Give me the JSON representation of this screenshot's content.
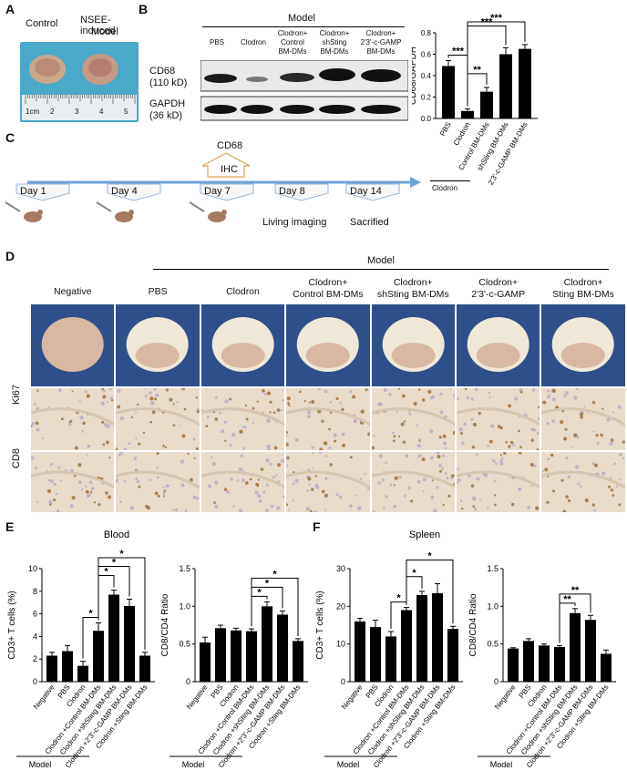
{
  "panel_letters": [
    "A",
    "B",
    "C",
    "D",
    "E",
    "F"
  ],
  "panelA": {
    "labels": [
      "Control",
      "NSEE-induced",
      "Model"
    ],
    "ruler_labels": [
      "1cm",
      "2",
      "3",
      "4",
      "5"
    ]
  },
  "panelB": {
    "model_label": "Model",
    "lane_labels": [
      [
        "PBS"
      ],
      [
        "Clodron"
      ],
      [
        "Clodron+",
        "Control",
        "BM-DMs"
      ],
      [
        "Clodron+",
        "shSting",
        "BM-DMs"
      ],
      [
        "Clodron+",
        "2'3'-c-GAMP",
        "BM-DMs"
      ]
    ],
    "blot_labels": [
      [
        "CD68",
        "(110 kD)"
      ],
      [
        "GAPDH",
        "(36 kD)"
      ]
    ]
  },
  "panelC": {
    "markers": [
      "Day 1",
      "Day 4",
      "Day 7",
      "Day 8",
      "Day 14"
    ],
    "top_label": "CD68",
    "ihc_label": "IHC",
    "events": [
      "Living imaging",
      "Sacrified"
    ],
    "treatment_label": "Clodron"
  },
  "panelD": {
    "model_label": "Model",
    "columns": [
      [
        "Negative"
      ],
      [
        "PBS"
      ],
      [
        "Clodron"
      ],
      [
        "Clodron+",
        "Control BM-DMs"
      ],
      [
        "Clodron+",
        "shSting BM-DMs"
      ],
      [
        "Clodron+",
        "2'3'-c-GAMP"
      ],
      [
        "Clodron+",
        "Sting BM-DMs"
      ]
    ],
    "row_labels": [
      "Ki67",
      "CD8"
    ]
  },
  "chart_data": [
    {
      "id": "B",
      "type": "bar",
      "ylabel": "CD68/GAPDH",
      "ylim": [
        0,
        0.8
      ],
      "yticks": [
        0.0,
        0.2,
        0.4,
        0.6,
        0.8
      ],
      "ytick_labels": [
        "0.0",
        "0.2",
        "0.4",
        "0.6",
        "0.8"
      ],
      "categories": [
        "PBS",
        "Clodron",
        "Control BM-DMs",
        "shSting BM-DMs",
        "2'3'-c-GAMP BM-DMs"
      ],
      "values": [
        0.49,
        0.07,
        0.25,
        0.6,
        0.65
      ],
      "errors": [
        0.05,
        0.02,
        0.04,
        0.06,
        0.04
      ],
      "significance": [
        {
          "from": 0,
          "to": 1,
          "label": "***"
        },
        {
          "from": 1,
          "to": 2,
          "label": "**"
        },
        {
          "from": 1,
          "to": 3,
          "label": "***"
        },
        {
          "from": 1,
          "to": 4,
          "label": "***"
        }
      ],
      "group_label": "Clodron"
    },
    {
      "id": "E1",
      "type": "bar",
      "panel_title": "Blood",
      "ylabel": "CD3+ T cells (%)",
      "ylim": [
        0,
        10
      ],
      "yticks": [
        0,
        2,
        4,
        6,
        8,
        10
      ],
      "ytick_labels": [
        "0",
        "2",
        "4",
        "6",
        "8",
        "10"
      ],
      "categories": [
        "Negative",
        "PBS",
        "Clodron",
        "Clodron +Control BM-DMs",
        "Clodron +shSting BM-DMs",
        "Clodron +2'3'-c-GAMP BM-DMs",
        "Clodron +Sting BM-DMs"
      ],
      "values": [
        2.3,
        2.7,
        1.4,
        4.5,
        7.7,
        6.7,
        2.3
      ],
      "errors": [
        0.3,
        0.5,
        0.4,
        0.7,
        0.4,
        0.6,
        0.3
      ],
      "significance": [
        {
          "from": 2,
          "to": 3,
          "label": "*"
        },
        {
          "from": 3,
          "to": 4,
          "label": "*"
        },
        {
          "from": 3,
          "to": 5,
          "label": "*"
        },
        {
          "from": 3,
          "to": 6,
          "label": "*"
        }
      ],
      "group_label": "Model"
    },
    {
      "id": "E2",
      "type": "bar",
      "ylabel": "CD8/CD4 Ratio",
      "ylim": [
        0,
        1.5
      ],
      "yticks": [
        0,
        0.5,
        1.0,
        1.5
      ],
      "ytick_labels": [
        "0",
        "0.5",
        "1.0",
        "1.5"
      ],
      "categories": [
        "Negative",
        "PBS",
        "Clodron",
        "Clodron +Control BM-DMs",
        "Clodron +shSting BM-DMs",
        "Clodron +2'3'-c-GAMP BM-DMs",
        "Clodron +Sting BM-DMs"
      ],
      "values": [
        0.52,
        0.71,
        0.68,
        0.67,
        1.0,
        0.89,
        0.54
      ],
      "errors": [
        0.07,
        0.04,
        0.03,
        0.03,
        0.06,
        0.05,
        0.03
      ],
      "significance": [
        {
          "from": 3,
          "to": 4,
          "label": "*"
        },
        {
          "from": 3,
          "to": 5,
          "label": "*"
        },
        {
          "from": 3,
          "to": 6,
          "label": "*"
        }
      ],
      "group_label": "Model"
    },
    {
      "id": "F1",
      "type": "bar",
      "panel_title": "Spleen",
      "ylabel": "CD3+ T cells (%)",
      "ylim": [
        0,
        30
      ],
      "yticks": [
        0,
        10,
        20,
        30
      ],
      "ytick_labels": [
        "0",
        "10",
        "20",
        "30"
      ],
      "categories": [
        "Negative",
        "PBS",
        "Clodron",
        "Clodron +Control BM-DMs",
        "Clodron +shSting BM-DMs",
        "Clodron +2'3'-c-GAMP BM-DMs",
        "Clodron +Sting BM-DMs"
      ],
      "values": [
        16,
        14.5,
        12,
        19,
        23,
        23.5,
        14
      ],
      "errors": [
        0.8,
        1.8,
        1.3,
        0.7,
        1.0,
        2.5,
        0.7
      ],
      "significance": [
        {
          "from": 2,
          "to": 3,
          "label": "*"
        },
        {
          "from": 3,
          "to": 4,
          "label": "*"
        },
        {
          "from": 3,
          "to": 6,
          "label": "*"
        }
      ],
      "group_label": "Model"
    },
    {
      "id": "F2",
      "type": "bar",
      "ylabel": "CD8/CD4 Ratio",
      "ylim": [
        0,
        1.5
      ],
      "yticks": [
        0,
        0.5,
        1.0,
        1.5
      ],
      "ytick_labels": [
        "0",
        "0.5",
        "1.0",
        "1.5"
      ],
      "categories": [
        "Negative",
        "PBS",
        "Clodron",
        "Clodron +Control BM-DMs",
        "Clodron +shSting BM-DMs",
        "Clodron +2'3'-c-GAMP BM-DMs",
        "Clodron +Sting BM-DMs"
      ],
      "values": [
        0.44,
        0.54,
        0.48,
        0.46,
        0.91,
        0.82,
        0.37
      ],
      "errors": [
        0.01,
        0.03,
        0.02,
        0.02,
        0.06,
        0.06,
        0.05
      ],
      "significance": [
        {
          "from": 3,
          "to": 4,
          "label": "**"
        },
        {
          "from": 3,
          "to": 5,
          "label": "**"
        }
      ],
      "group_label": "Model"
    }
  ]
}
